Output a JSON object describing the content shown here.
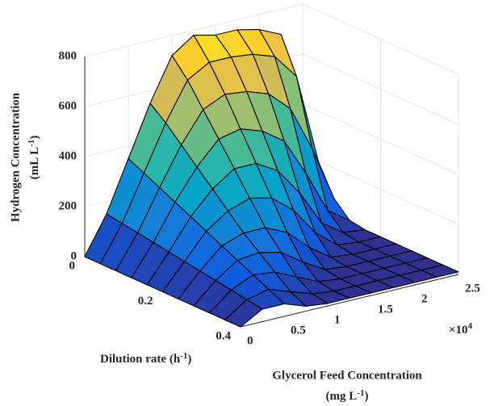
{
  "chart_data": {
    "type": "surface",
    "zlabel": {
      "line1": "Hydrogen Concentration",
      "unit": "(mL L",
      "unit_sup": "-1",
      "unit_end": ")"
    },
    "ylabel": {
      "text": "Dilution rate (h",
      "sup": "-1",
      "end": ")"
    },
    "xlabel": {
      "line1": "Glycerol Feed Concentration",
      "unit": "(mg L",
      "unit_sup": "-1",
      "unit_end": ")"
    },
    "x_multiplier": "×10",
    "x_multiplier_exp": "4",
    "x": [
      0,
      2500,
      5000,
      7500,
      10000,
      12500,
      15000,
      17500,
      20000,
      22500,
      25000
    ],
    "y": [
      0,
      0.04,
      0.08,
      0.12,
      0.16,
      0.2,
      0.24,
      0.28,
      0.32,
      0.36,
      0.4
    ],
    "z": [
      [
        0,
        150,
        350,
        550,
        720,
        780,
        760,
        760,
        740,
        700,
        300
      ],
      [
        0,
        140,
        320,
        500,
        650,
        700,
        700,
        690,
        660,
        560,
        200
      ],
      [
        0,
        130,
        290,
        440,
        560,
        600,
        590,
        560,
        480,
        300,
        80
      ],
      [
        0,
        120,
        260,
        380,
        470,
        490,
        460,
        400,
        250,
        80,
        20
      ],
      [
        0,
        110,
        230,
        320,
        380,
        380,
        330,
        220,
        80,
        20,
        10
      ],
      [
        0,
        100,
        200,
        260,
        290,
        270,
        200,
        90,
        20,
        10,
        10
      ],
      [
        0,
        90,
        170,
        200,
        200,
        160,
        80,
        20,
        10,
        10,
        10
      ],
      [
        0,
        80,
        140,
        150,
        130,
        70,
        20,
        10,
        10,
        10,
        10
      ],
      [
        0,
        70,
        110,
        100,
        60,
        20,
        10,
        10,
        10,
        10,
        10
      ],
      [
        0,
        60,
        80,
        50,
        20,
        10,
        10,
        10,
        10,
        10,
        10
      ],
      [
        0,
        50,
        50,
        20,
        10,
        10,
        10,
        10,
        10,
        10,
        10
      ]
    ],
    "xlim": [
      0,
      25000
    ],
    "ylim": [
      0,
      0.4
    ],
    "zlim": [
      0,
      800
    ],
    "xticks": [
      0,
      {
        "value": 5000,
        "label": "0.5"
      },
      {
        "value": 10000,
        "label": "1"
      },
      {
        "value": 15000,
        "label": "1.5"
      },
      {
        "value": 20000,
        "label": "2"
      },
      {
        "value": 25000,
        "label": "2.5"
      }
    ],
    "yticks": [
      0,
      0.2,
      0.4
    ],
    "zticks": [
      0,
      200,
      400,
      600,
      800
    ],
    "grid": true,
    "colormap": "parula",
    "edgecolor": "#000000"
  }
}
